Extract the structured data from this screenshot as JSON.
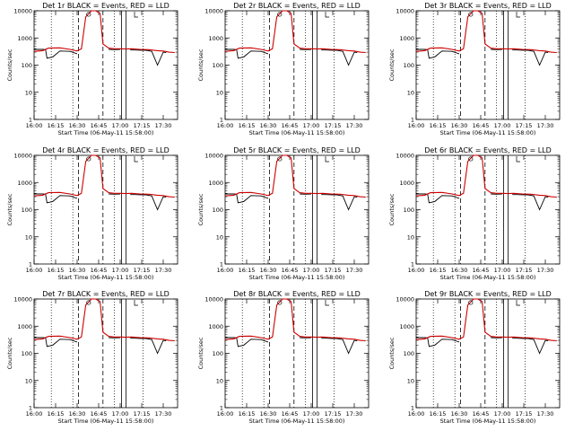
{
  "chart_data": [
    {
      "type": "line",
      "title": "Det 1r BLACK = Events, RED = LLD",
      "xlabel": "Start Time (06-May-11 15:58:00)",
      "ylabel": "Counts/sec"
    },
    {
      "type": "line",
      "title": "Det 2r BLACK = Events, RED = LLD",
      "xlabel": "Start Time (06-May-11 15:58:00)",
      "ylabel": "Counts/sec"
    },
    {
      "type": "line",
      "title": "Det 3r BLACK = Events, RED = LLD",
      "xlabel": "Start Time (06-May-11 15:58:00)",
      "ylabel": "Counts/sec"
    },
    {
      "type": "line",
      "title": "Det 4r BLACK = Events, RED = LLD",
      "xlabel": "Start Time (06-May-11 15:58:00)",
      "ylabel": "Counts/sec"
    },
    {
      "type": "line",
      "title": "Det 5r BLACK = Events, RED = LLD",
      "xlabel": "Start Time (06-May-11 15:58:00)",
      "ylabel": "Counts/sec"
    },
    {
      "type": "line",
      "title": "Det 6r BLACK = Events, RED = LLD",
      "xlabel": "Start Time (06-May-11 15:58:00)",
      "ylabel": "Counts/sec"
    },
    {
      "type": "line",
      "title": "Det 7r BLACK = Events, RED = LLD",
      "xlabel": "Start Time (06-May-11 15:58:00)",
      "ylabel": "Counts/sec"
    },
    {
      "type": "line",
      "title": "Det 8r BLACK = Events, RED = LLD",
      "xlabel": "Start Time (06-May-11 15:58:00)",
      "ylabel": "Counts/sec"
    },
    {
      "type": "line",
      "title": "Det 9r BLACK = Events, RED = LLD",
      "xlabel": "Start Time (06-May-11 15:58:00)",
      "ylabel": "Counts/sec"
    }
  ],
  "shared": {
    "x_ticks": [
      "16:00",
      "16:15",
      "16:30",
      "16:45",
      "17:00",
      "17:15",
      "17:30"
    ],
    "x_tick_values_min": [
      0,
      15,
      30,
      45,
      60,
      75,
      90
    ],
    "xlim_min": [
      0,
      100
    ],
    "y_scale": "log",
    "ylim": [
      1,
      10000
    ],
    "y_ticks": [
      "1",
      "10",
      "100",
      "1000",
      "10000"
    ],
    "y_tick_values": [
      1,
      10,
      100,
      1000,
      10000
    ],
    "events_color": "#000000",
    "lld_color": "#cc0000",
    "dotted_lines_min": [
      12,
      27,
      56,
      76
    ],
    "dashed_lines_min": [
      31,
      48
    ],
    "solid_lines_min": [
      61,
      64
    ],
    "events_series": {
      "x": [
        0,
        6,
        8,
        9,
        13,
        18,
        25,
        30,
        31,
        33,
        36,
        40,
        43,
        45,
        48,
        52,
        56,
        60,
        61,
        64,
        67,
        70,
        74,
        78,
        82,
        86,
        90,
        92
      ],
      "y": [
        380,
        380,
        370,
        180,
        200,
        330,
        320,
        260,
        null,
        null,
        null,
        null,
        null,
        null,
        null,
        380,
        370,
        380,
        null,
        null,
        360,
        360,
        355,
        350,
        320,
        100,
        300,
        290
      ]
    },
    "lld_series": {
      "x": [
        0,
        6,
        10,
        18,
        25,
        30,
        33,
        36,
        40,
        43,
        46,
        48,
        52,
        56,
        60,
        64,
        68,
        74,
        80,
        86,
        90,
        94,
        98
      ],
      "y": [
        320,
        340,
        420,
        430,
        380,
        330,
        400,
        6000,
        12000,
        12500,
        8000,
        600,
        420,
        400,
        400,
        390,
        400,
        380,
        370,
        340,
        330,
        300,
        290
      ]
    }
  }
}
